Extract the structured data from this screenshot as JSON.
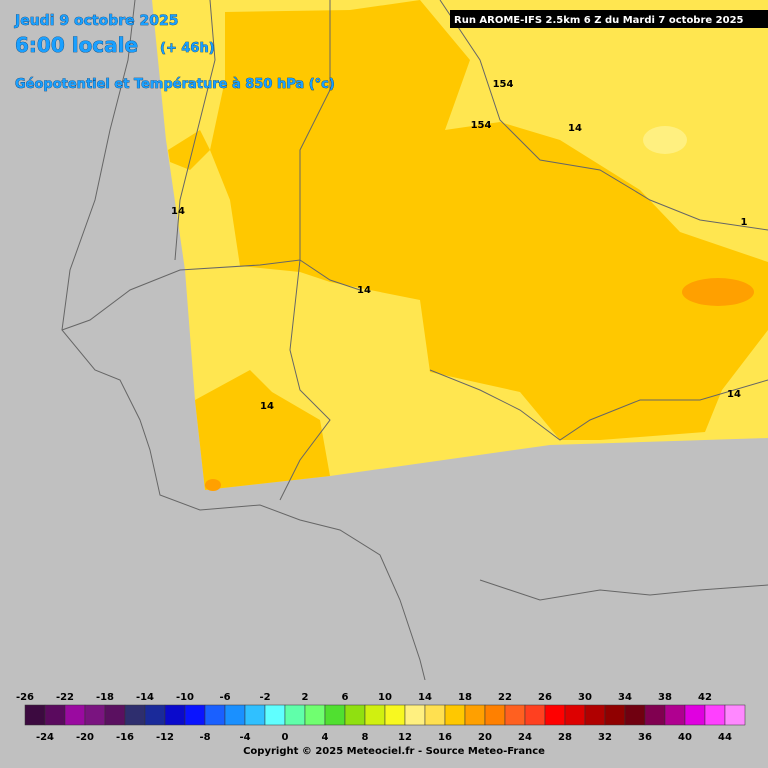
{
  "header": {
    "date": "Jeudi 9 octobre 2025",
    "time": "6:00 locale",
    "lead": "(+ 46h)",
    "field": "Géopotentiel et Température à 850 hPa (°c)",
    "run": "Run AROME-IFS 2.5km 6 Z du Mardi 7 octobre 2025"
  },
  "contour_labels": [
    14,
    14,
    14,
    14,
    14,
    154,
    154,
    1
  ],
  "legend": {
    "values": [
      -26,
      -24,
      -22,
      -20,
      -18,
      -16,
      -14,
      -12,
      -10,
      -8,
      -6,
      -4,
      -2,
      0,
      2,
      4,
      6,
      8,
      10,
      12,
      14,
      16,
      18,
      20,
      22,
      24,
      26,
      28,
      30,
      32,
      34,
      36,
      38,
      40,
      42,
      44
    ],
    "colors": [
      "#3c0a40",
      "#5a0a5e",
      "#9a0aa0",
      "#7a1480",
      "#5a1060",
      "#2e2e6e",
      "#1a2a9a",
      "#0a0acc",
      "#0a14ff",
      "#1a60ff",
      "#1a90ff",
      "#30c0ff",
      "#60ffff",
      "#60ffaa",
      "#70ff70",
      "#50e030",
      "#90e010",
      "#d0f010",
      "#f8f820",
      "#fff080",
      "#ffe050",
      "#ffc800",
      "#ffa000",
      "#ff8000",
      "#ff6020",
      "#ff4020",
      "#ff0000",
      "#dd0000",
      "#b00000",
      "#900000",
      "#700010",
      "#800050",
      "#b00090",
      "#e000e0",
      "#ff40ff",
      "#ff88ff"
    ]
  },
  "copyright": "Copyright © 2025 Meteociel.fr - Source Meteo-France"
}
